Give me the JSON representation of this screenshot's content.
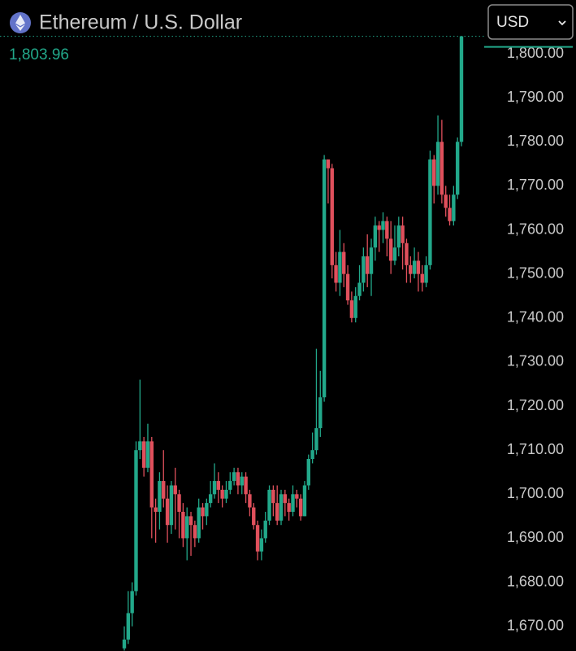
{
  "chart_data": {
    "type": "candlestick",
    "title": "Ethereum / U.S. Dollar",
    "currency": "USD",
    "last_price": {
      "value": 1803.96,
      "label": "1,803.96"
    },
    "up_color": "#22a88a",
    "down_color": "#e0505c",
    "ylim": [
      1664.4,
      1812.2
    ],
    "yticks": [
      {
        "value": 1670,
        "label": "1,670.00"
      },
      {
        "value": 1680,
        "label": "1,680.00"
      },
      {
        "value": 1690,
        "label": "1,690.00"
      },
      {
        "value": 1700,
        "label": "1,700.00"
      },
      {
        "value": 1710,
        "label": "1,710.00"
      },
      {
        "value": 1720,
        "label": "1,720.00"
      },
      {
        "value": 1730,
        "label": "1,730.00"
      },
      {
        "value": 1740,
        "label": "1,740.00"
      },
      {
        "value": 1750,
        "label": "1,750.00"
      },
      {
        "value": 1760,
        "label": "1,760.00"
      },
      {
        "value": 1770,
        "label": "1,770.00"
      },
      {
        "value": 1780,
        "label": "1,780.00"
      },
      {
        "value": 1790,
        "label": "1,790.00"
      },
      {
        "value": 1800,
        "label": "1,800.00"
      }
    ],
    "open": [
      1665,
      1667,
      1673,
      1678,
      1710,
      1712,
      1706,
      1712,
      1697,
      1696,
      1703,
      1699,
      1693,
      1702,
      1700,
      1696,
      1690,
      1695,
      1693,
      1690,
      1697,
      1695,
      1698,
      1700,
      1703,
      1701,
      1699,
      1701,
      1703,
      1705,
      1702,
      1704,
      1700,
      1697,
      1693,
      1687,
      1690,
      1694,
      1701,
      1698,
      1694,
      1700,
      1698,
      1696,
      1700,
      1699,
      1695,
      1702,
      1708,
      1710,
      1715,
      1722,
      1776,
      1774,
      1752,
      1748,
      1755,
      1750,
      1744,
      1740,
      1745,
      1748,
      1754,
      1750,
      1756,
      1761,
      1760,
      1762,
      1758,
      1753,
      1756,
      1761,
      1757,
      1752,
      1750,
      1753,
      1750,
      1748,
      1752,
      1776,
      1770,
      1780,
      1768,
      1765,
      1762,
      1768,
      1780
    ],
    "high": [
      1670,
      1678,
      1680,
      1712,
      1726,
      1713,
      1716,
      1713,
      1699,
      1705,
      1710,
      1702,
      1703,
      1706,
      1701,
      1698,
      1697,
      1696,
      1694,
      1699,
      1698,
      1699,
      1703,
      1707,
      1705,
      1702,
      1703,
      1705,
      1706,
      1706,
      1705,
      1705,
      1701,
      1698,
      1694,
      1692,
      1696,
      1702,
      1702,
      1702,
      1701,
      1701,
      1699,
      1702,
      1701,
      1700,
      1703,
      1709,
      1714,
      1733,
      1728,
      1777,
      1776,
      1775,
      1755,
      1760,
      1757,
      1752,
      1746,
      1747,
      1752,
      1756,
      1759,
      1758,
      1763,
      1762,
      1764,
      1763,
      1762,
      1761,
      1763,
      1763,
      1758,
      1754,
      1756,
      1755,
      1752,
      1754,
      1778,
      1777,
      1786,
      1785,
      1770,
      1768,
      1770,
      1781,
      1804
    ],
    "low": [
      1664.5,
      1666,
      1670,
      1677,
      1708,
      1704,
      1705,
      1690,
      1689,
      1692,
      1697,
      1689,
      1691,
      1692,
      1690,
      1688,
      1685,
      1686,
      1688,
      1689,
      1692,
      1693,
      1697,
      1699,
      1698,
      1697,
      1698,
      1700,
      1702,
      1700,
      1700,
      1698,
      1695,
      1692,
      1685,
      1685,
      1689,
      1693,
      1695,
      1693,
      1693,
      1695,
      1694,
      1695,
      1697,
      1694,
      1695,
      1701,
      1707,
      1709,
      1713,
      1721,
      1766,
      1749,
      1746,
      1745,
      1747,
      1743,
      1739,
      1739,
      1744,
      1746,
      1747,
      1745,
      1753,
      1755,
      1757,
      1754,
      1750,
      1752,
      1754,
      1751,
      1748,
      1748,
      1749,
      1746,
      1746,
      1747,
      1751,
      1766,
      1768,
      1766,
      1763,
      1761,
      1761,
      1767,
      1779
    ],
    "close": [
      1667,
      1673,
      1678,
      1710,
      1712,
      1706,
      1712,
      1697,
      1696,
      1703,
      1699,
      1693,
      1702,
      1700,
      1696,
      1690,
      1695,
      1693,
      1690,
      1697,
      1695,
      1698,
      1700,
      1703,
      1701,
      1699,
      1701,
      1703,
      1705,
      1702,
      1704,
      1700,
      1697,
      1693,
      1687,
      1690,
      1694,
      1701,
      1698,
      1694,
      1700,
      1698,
      1696,
      1700,
      1699,
      1695,
      1702,
      1708,
      1710,
      1715,
      1722,
      1776,
      1774,
      1752,
      1748,
      1755,
      1750,
      1744,
      1740,
      1745,
      1748,
      1754,
      1750,
      1756,
      1761,
      1760,
      1762,
      1758,
      1753,
      1756,
      1761,
      1757,
      1752,
      1750,
      1753,
      1750,
      1748,
      1752,
      1776,
      1770,
      1780,
      1768,
      1765,
      1762,
      1768,
      1780,
      1803.96
    ]
  }
}
